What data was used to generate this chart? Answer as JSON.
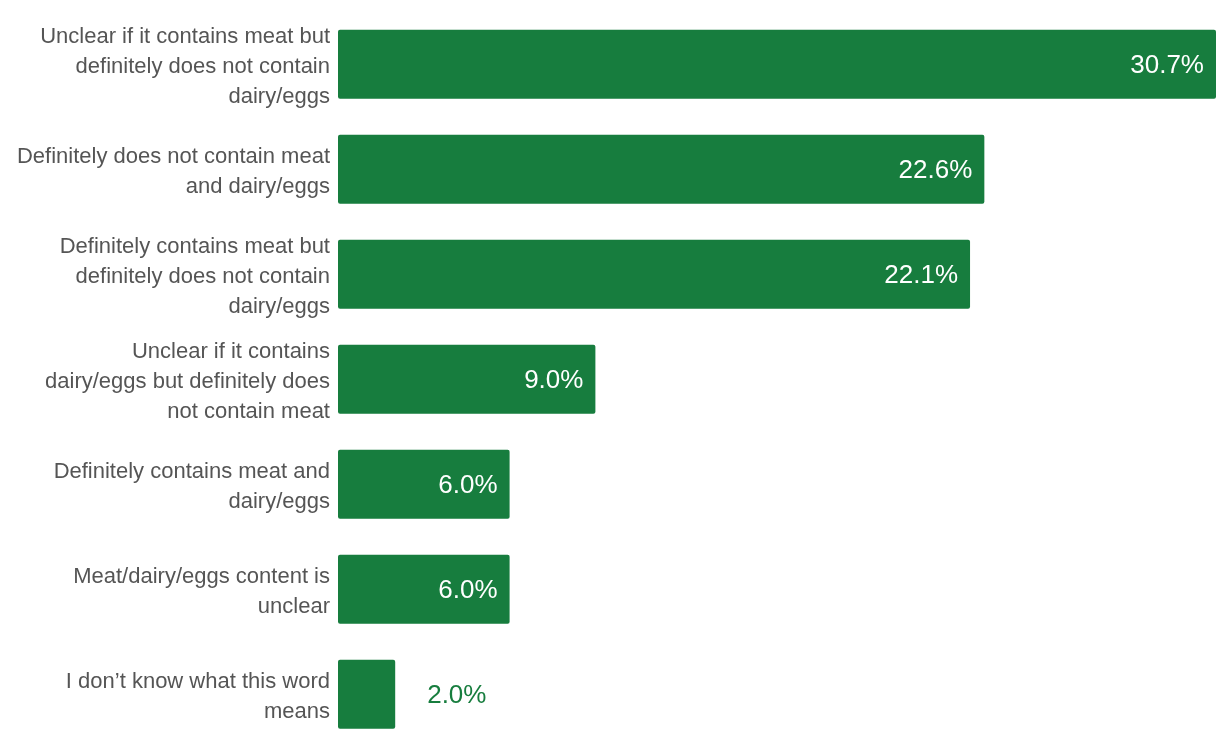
{
  "chart_data": {
    "type": "bar",
    "orientation": "horizontal",
    "color": "#177d3e",
    "categories": [
      "Unclear if it contains meat but definitely does not contain dairy/eggs",
      "Definitely does not contain meat and dairy/eggs",
      "Definitely contains meat but definitely does not contain dairy/eggs",
      "Unclear if it contains dairy/eggs but definitely does not contain meat",
      "Definitely contains meat and dairy/eggs",
      "Meat/dairy/eggs content is unclear",
      "I don’t know what this word means"
    ],
    "values": [
      30.7,
      22.6,
      22.1,
      9.0,
      6.0,
      6.0,
      2.0
    ],
    "value_labels": [
      "30.7%",
      "22.6%",
      "22.1%",
      "9.0%",
      "6.0%",
      "6.0%",
      "2.0%"
    ]
  }
}
